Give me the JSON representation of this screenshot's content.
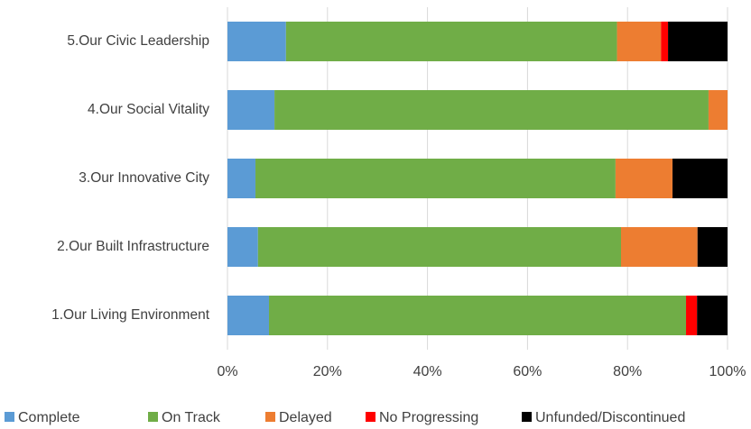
{
  "chart_data": {
    "type": "stacked_bar_horizontal",
    "categories": [
      "1.Our Living Environment",
      "2.Our Built Infrastructure",
      "3.Our Innovative City",
      "4.Our Social Vitality",
      "5.Our Civic Leadership"
    ],
    "series": [
      {
        "name": "Complete",
        "color": "#5b9bd5",
        "values": [
          8.3,
          6.1,
          5.6,
          9.4,
          11.7
        ]
      },
      {
        "name": "On Track",
        "color": "#70ad47",
        "values": [
          83.4,
          72.6,
          72.0,
          86.8,
          66.2
        ]
      },
      {
        "name": "Delayed",
        "color": "#ed7d31",
        "values": [
          0,
          15.3,
          11.4,
          3.8,
          8.8
        ]
      },
      {
        "name": "No Progressing",
        "color": "#ff0000",
        "values": [
          2.2,
          0,
          0,
          0,
          1.4
        ]
      },
      {
        "name": "Unfunded/Discontinued",
        "color": "#000000",
        "values": [
          6.1,
          6.0,
          11.0,
          0,
          11.9
        ]
      }
    ],
    "xlim": [
      0,
      100
    ],
    "xticks": [
      {
        "value": 0,
        "label": "0%"
      },
      {
        "value": 20,
        "label": "20%"
      },
      {
        "value": 40,
        "label": "40%"
      },
      {
        "value": 60,
        "label": "60%"
      },
      {
        "value": 80,
        "label": "80%"
      },
      {
        "value": 100,
        "label": "100%"
      }
    ],
    "grid": true,
    "legend": "bottom"
  }
}
